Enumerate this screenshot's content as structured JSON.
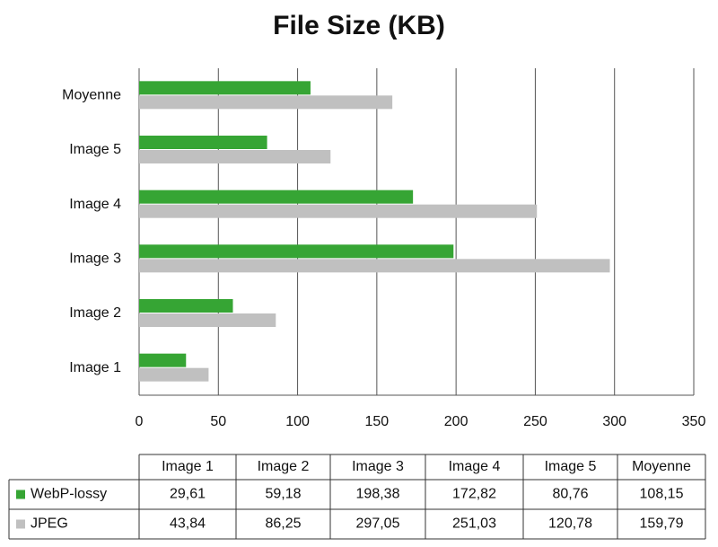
{
  "chart_data": {
    "type": "bar",
    "orientation": "horizontal",
    "title": "File Size (KB)",
    "categories": [
      "Image 1",
      "Image 2",
      "Image 3",
      "Image 4",
      "Image 5",
      "Moyenne"
    ],
    "series": [
      {
        "name": "WebP-lossy",
        "color": "#36a534",
        "values": [
          29.61,
          59.18,
          198.38,
          172.82,
          80.76,
          108.15
        ],
        "value_labels": [
          "29,61",
          "59,18",
          "198,38",
          "172,82",
          "80,76",
          "108,15"
        ]
      },
      {
        "name": "JPEG",
        "color": "#c0c0c0",
        "values": [
          43.84,
          86.25,
          297.05,
          251.03,
          120.78,
          159.79
        ],
        "value_labels": [
          "43,84",
          "86,25",
          "297,05",
          "251,03",
          "120,78",
          "159,79"
        ]
      }
    ],
    "xlim": [
      0,
      350
    ],
    "xticks": [
      0,
      50,
      100,
      150,
      200,
      250,
      300,
      350
    ],
    "grid": true,
    "data_table": true
  }
}
